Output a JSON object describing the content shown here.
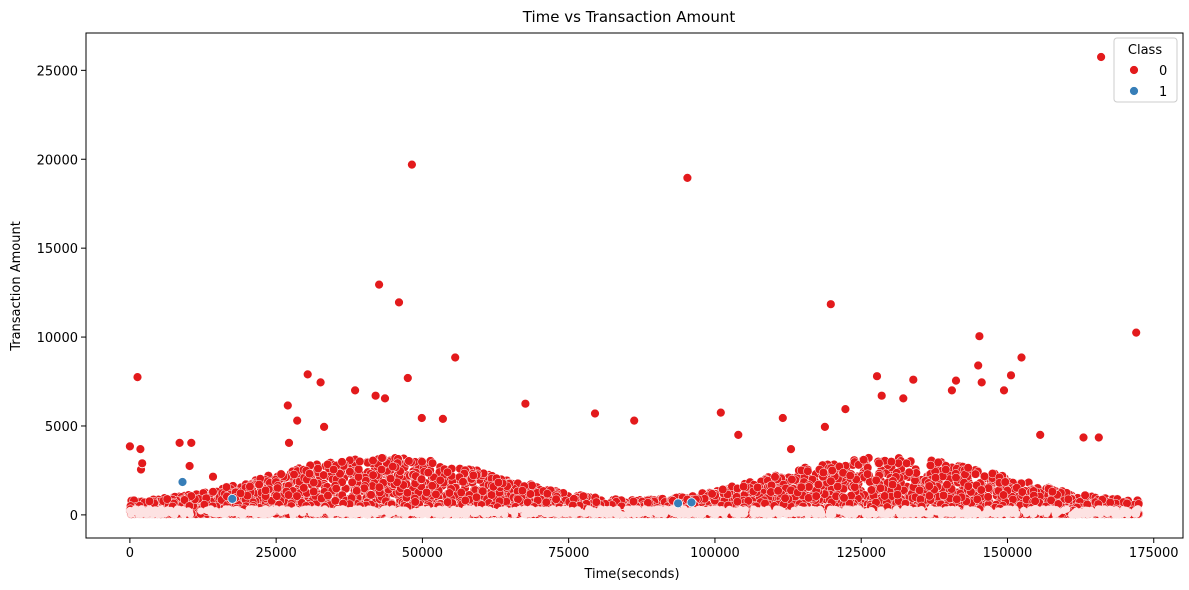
{
  "chart_data": {
    "type": "scatter",
    "title": "Time vs Transaction Amount",
    "xlabel": "Time(seconds)",
    "ylabel": "Transaction Amount",
    "xlim": [
      -7500,
      180000
    ],
    "ylim": [
      -1300,
      27100
    ],
    "xticks": [
      0,
      25000,
      50000,
      75000,
      100000,
      125000,
      150000,
      175000
    ],
    "yticks": [
      0,
      5000,
      10000,
      15000,
      20000,
      25000
    ],
    "grid": false,
    "legend": {
      "title": "Class",
      "placement": "top-right"
    },
    "series": [
      {
        "name": "0",
        "color": "#e31a1c",
        "points": [
          [
            0,
            3850
          ],
          [
            1300,
            7750
          ],
          [
            1800,
            3700
          ],
          [
            1900,
            2550
          ],
          [
            2100,
            2900
          ],
          [
            8500,
            4050
          ],
          [
            10500,
            4050
          ],
          [
            10200,
            2750
          ],
          [
            14200,
            2150
          ],
          [
            27000,
            6150
          ],
          [
            27200,
            4050
          ],
          [
            28600,
            5300
          ],
          [
            30400,
            7900
          ],
          [
            32600,
            7450
          ],
          [
            33200,
            4950
          ],
          [
            38500,
            7000
          ],
          [
            42000,
            6700
          ],
          [
            42600,
            12950
          ],
          [
            43600,
            6550
          ],
          [
            46000,
            11950
          ],
          [
            47500,
            7700
          ],
          [
            48200,
            19700
          ],
          [
            49900,
            5450
          ],
          [
            53500,
            5400
          ],
          [
            55600,
            8850
          ],
          [
            67600,
            6250
          ],
          [
            79500,
            5700
          ],
          [
            86200,
            5300
          ],
          [
            95300,
            18950
          ],
          [
            101000,
            5750
          ],
          [
            111600,
            5450
          ],
          [
            119800,
            11850
          ],
          [
            122300,
            5950
          ],
          [
            127700,
            7800
          ],
          [
            128500,
            6700
          ],
          [
            133900,
            7600
          ],
          [
            140500,
            7000
          ],
          [
            141200,
            7550
          ],
          [
            145200,
            10050
          ],
          [
            145000,
            8400
          ],
          [
            145600,
            7450
          ],
          [
            149400,
            7000
          ],
          [
            150600,
            7850
          ],
          [
            152400,
            8850
          ],
          [
            166000,
            25750
          ],
          [
            172000,
            10250
          ],
          [
            165600,
            4350
          ],
          [
            163000,
            4350
          ],
          [
            155600,
            4500
          ],
          [
            132200,
            6550
          ],
          [
            118800,
            4950
          ],
          [
            113000,
            3700
          ],
          [
            104000,
            4500
          ]
        ]
      },
      {
        "name": "1",
        "color": "#377eb8",
        "points": [
          [
            9000,
            1850
          ],
          [
            17500,
            900
          ],
          [
            93700,
            650
          ],
          [
            96000,
            700
          ]
        ]
      }
    ]
  }
}
